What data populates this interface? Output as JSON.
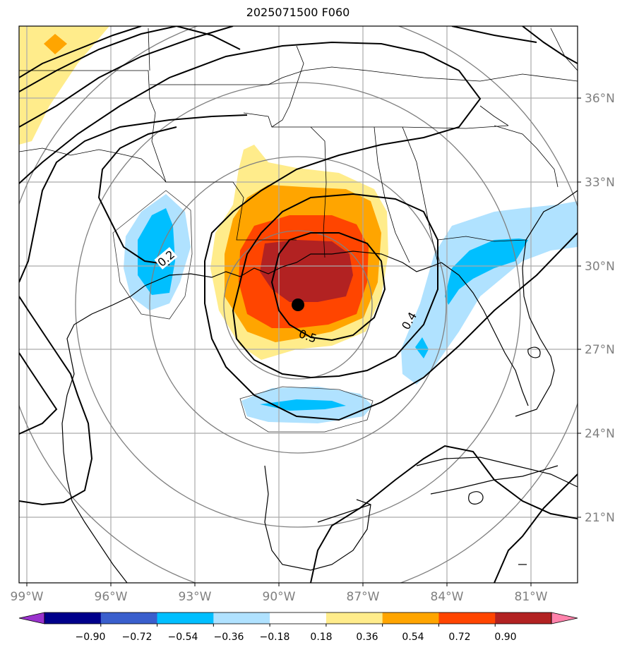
{
  "title": "2025071500 F060",
  "map": {
    "longitude_labels": [
      "99°W",
      "96°W",
      "93°W",
      "90°W",
      "87°W",
      "84°W",
      "81°W"
    ],
    "latitude_labels": [
      "36°N",
      "33°N",
      "30°N",
      "27°N",
      "24°N",
      "21°N"
    ],
    "contour_labels": [
      "0.2",
      "0.4",
      "0.5"
    ],
    "center_marker": "storm-center"
  },
  "colorbar": {
    "ticks": [
      "−0.90",
      "−0.72",
      "−0.54",
      "−0.36",
      "−0.18",
      "0.18",
      "0.36",
      "0.54",
      "0.72",
      "0.90"
    ],
    "colors": [
      "#9a32cd",
      "#00008b",
      "#3a5fcd",
      "#00bfff",
      "#b0e2ff",
      "#ffffff",
      "#ffec8b",
      "#ffa500",
      "#ff4500",
      "#b22222",
      "#ff82ab"
    ]
  }
}
